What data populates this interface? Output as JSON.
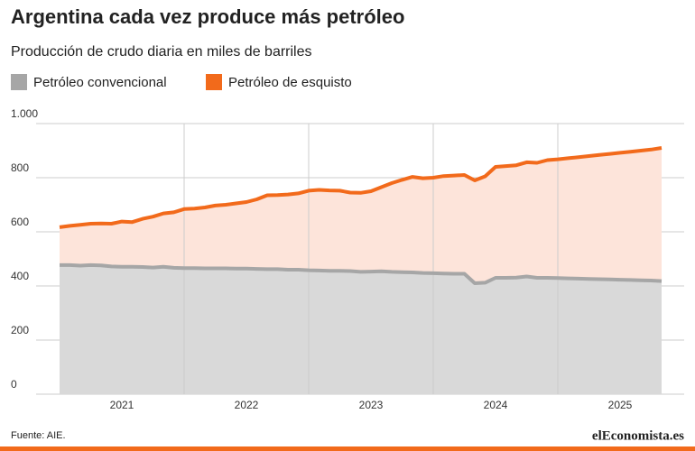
{
  "chart_data": {
    "type": "stacked-area",
    "title": "Argentina cada vez produce más petróleo",
    "subtitle": "Producción de crudo diaria en miles de barriles",
    "source": "Fuente: AIE.",
    "logo": "elEconomista.es",
    "categories": [
      null,
      null,
      null,
      null,
      null,
      null,
      "2021",
      null,
      null,
      null,
      null,
      null,
      null,
      null,
      null,
      null,
      null,
      null,
      "2022",
      null,
      null,
      null,
      null,
      null,
      null,
      null,
      null,
      null,
      null,
      null,
      "2023",
      null,
      null,
      null,
      null,
      null,
      null,
      null,
      null,
      null,
      null,
      null,
      "2024",
      null,
      null,
      null,
      null,
      null,
      null,
      null,
      null,
      null,
      null,
      null,
      "2025",
      null,
      null,
      null,
      null
    ],
    "series": [
      {
        "name": "Petróleo convencional",
        "color": "#a6a6a6",
        "fill": "#d9d9d9",
        "values": [
          477,
          477,
          475,
          477,
          476,
          472,
          471,
          471,
          470,
          468,
          471,
          467,
          466,
          466,
          465,
          465,
          465,
          464,
          464,
          463,
          462,
          462,
          460,
          460,
          458,
          457,
          456,
          456,
          455,
          452,
          453,
          454,
          452,
          451,
          450,
          448,
          447,
          446,
          445,
          445,
          410,
          412,
          430,
          430,
          431,
          435,
          430,
          430,
          429,
          428,
          427,
          426,
          425,
          424,
          423,
          422,
          421,
          420,
          418
        ]
      },
      {
        "name": "Petróleo de esquisto",
        "color": "#f26a1b",
        "fill": "#fde4da",
        "values": [
          140,
          145,
          151,
          153,
          155,
          158,
          167,
          165,
          178,
          188,
          197,
          205,
          218,
          220,
          225,
          232,
          235,
          241,
          246,
          257,
          273,
          274,
          278,
          282,
          294,
          298,
          297,
          296,
          290,
          292,
          297,
          311,
          328,
          341,
          353,
          350,
          353,
          360,
          363,
          365,
          380,
          393,
          410,
          413,
          415,
          422,
          425,
          435,
          439,
          444,
          449,
          454,
          459,
          464,
          469,
          474,
          479,
          484,
          492
        ]
      }
    ],
    "ylim": [
      0,
      1000
    ],
    "yticks": [
      0,
      200,
      400,
      600,
      800,
      {
        "value": 1000,
        "label": "1.000"
      }
    ],
    "grid": true
  }
}
